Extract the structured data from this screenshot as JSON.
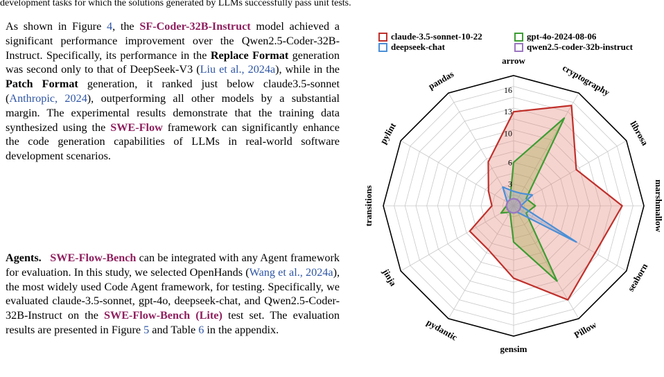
{
  "top_line": "development tasks for which the solutions generated by LLMs successfully pass unit tests.",
  "para1": {
    "t1": "As shown in Figure ",
    "fig_ref": "4",
    "t2": ", the ",
    "model": "SF-Coder-32B-Instruct",
    "t3": " model achieved a significant performance improvement over the Qwen2.5-Coder-32B-Instruct. Specifically, its performance in the ",
    "b1": "Replace Format",
    "t4": " generation was second only to that of DeepSeek-V3 (",
    "cite1": "Liu et al., 2024a",
    "t5": "), while in the ",
    "b2": "Patch Format",
    "t6": " generation, it ranked just below claude3.5-sonnet (",
    "cite2": "Anthropic, 2024",
    "t7": "), outperforming all other models by a substantial margin. The experimental results demonstrate that the training data synthesized using the ",
    "swe_flow": "SWE-Flow",
    "t8": " framework can significantly enhance the code generation capabilities of LLMs in real-world software development scenarios."
  },
  "para2": {
    "head": "Agents.",
    "bench": "SWE-Flow-Bench",
    "t1": " can be integrated with any Agent framework for evaluation. In this study, we selected OpenHands (",
    "cite1": "Wang et al., 2024a",
    "t2": "), the most widely used Code Agent framework, for testing. Specifically, we evaluated claude-3.5-sonnet, gpt-4o, deepseek-chat, and Qwen2.5-Coder-32B-Instruct on the ",
    "bench_lite": "SWE-Flow-Bench (Lite)",
    "t3": " test set. The evaluation results are presented in Figure ",
    "fig_ref": "5",
    "t4": " and Table ",
    "table_ref": "6",
    "t5": " in the appendix."
  },
  "chart_data": {
    "type": "radar",
    "categories": [
      "arrow",
      "cryptography",
      "librosa",
      "marshmallow",
      "seaborn",
      "Pillow",
      "gensim",
      "pydantic",
      "jinja",
      "transitions",
      "pylint",
      "pandas"
    ],
    "radial_ticks": [
      3,
      6,
      10,
      13,
      16
    ],
    "rmax": 18,
    "grid": true,
    "legend_position": "top",
    "series": [
      {
        "name": "claude-3.5-sonnet-10-22",
        "color": "#c0302b",
        "fill": "rgba(226,130,118,0.35)",
        "values": [
          13,
          16,
          10,
          15,
          13,
          15,
          10,
          7,
          7,
          3,
          4,
          7
        ]
      },
      {
        "name": "gpt-4o-2024-08-06",
        "color": "#3d9d33",
        "fill": "rgba(160,170,70,0.35)",
        "values": [
          6,
          14,
          2,
          3,
          2,
          12,
          5,
          1,
          2,
          1,
          1,
          1
        ]
      },
      {
        "name": "deepseek-chat",
        "color": "#4a8fd8",
        "fill": "rgba(110,160,220,0.25)",
        "values": [
          2,
          2,
          3,
          1,
          10,
          1,
          1,
          1,
          1,
          1,
          1,
          3
        ]
      },
      {
        "name": "qwen2.5-coder-32b-instruct",
        "color": "#9c76c0",
        "fill": "rgba(160,130,200,0.25)",
        "values": [
          1,
          1,
          1,
          1,
          1,
          1,
          1,
          1,
          1,
          1,
          1,
          1
        ]
      }
    ]
  }
}
